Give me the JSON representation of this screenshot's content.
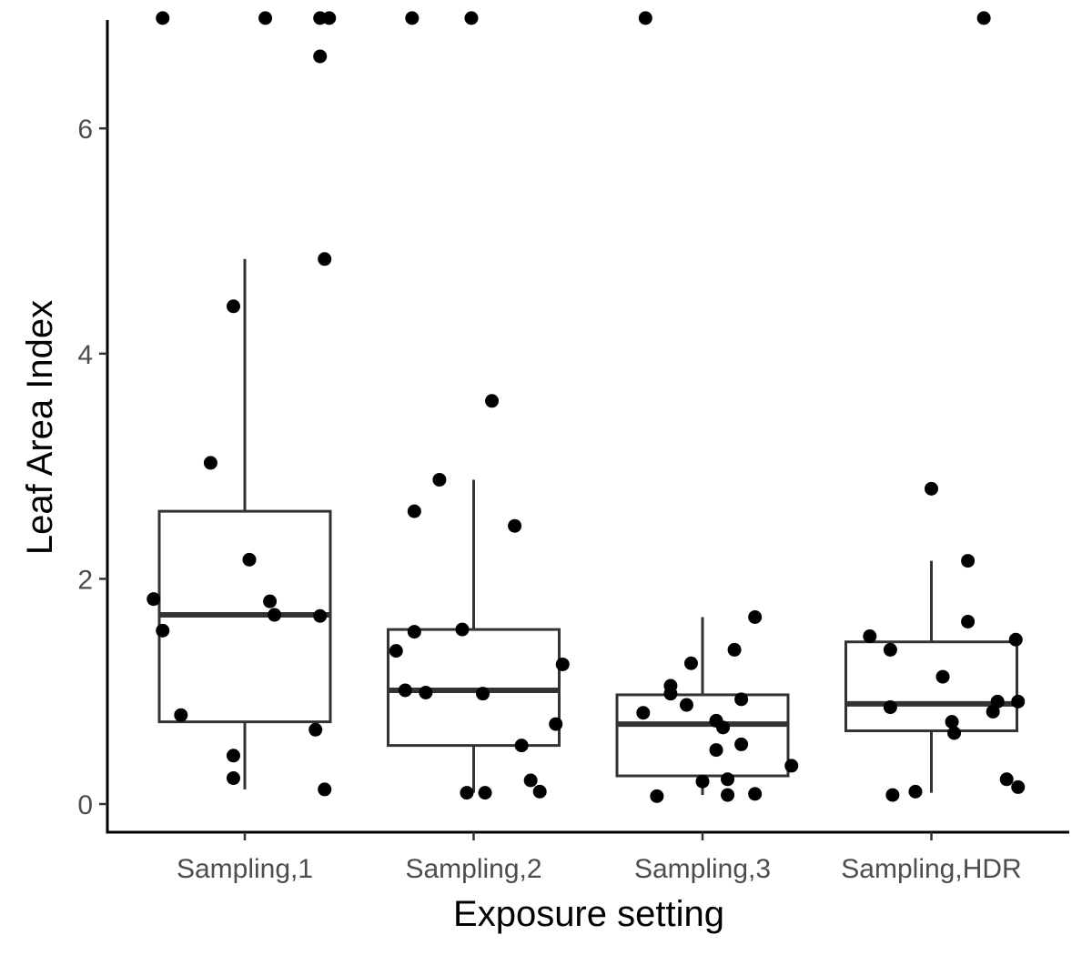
{
  "chart_data": {
    "type": "boxplot",
    "title": "",
    "xlabel": "Exposure setting",
    "ylabel": "Leaf Area Index",
    "categories": [
      "Sampling,1",
      "Sampling,2",
      "Sampling,3",
      "Sampling,HDR"
    ],
    "ylim": [
      -0.25,
      7
    ],
    "yticks": [
      0,
      2,
      4,
      6
    ],
    "grid": false,
    "legend": "none",
    "colors": {
      "box": "#333333",
      "point": "#000000",
      "axis": "#000000"
    },
    "boxes": [
      {
        "category": "Sampling,1",
        "whisker_low": 0.13,
        "q1": 0.73,
        "median": 1.68,
        "q3": 2.6,
        "whisker_high": 4.84
      },
      {
        "category": "Sampling,2",
        "whisker_low": 0.1,
        "q1": 0.52,
        "median": 1.01,
        "q3": 1.55,
        "whisker_high": 2.88
      },
      {
        "category": "Sampling,3",
        "whisker_low": 0.08,
        "q1": 0.25,
        "median": 0.71,
        "q3": 0.97,
        "whisker_high": 1.66
      },
      {
        "category": "Sampling,HDR",
        "whisker_low": 0.1,
        "q1": 0.65,
        "median": 0.89,
        "q3": 1.44,
        "whisker_high": 2.16
      }
    ],
    "points": [
      {
        "category": "Sampling,1",
        "jitter": -0.4,
        "y": 1.82
      },
      {
        "category": "Sampling,1",
        "jitter": -0.36,
        "y": 1.54
      },
      {
        "category": "Sampling,1",
        "jitter": -0.28,
        "y": 0.79
      },
      {
        "category": "Sampling,1",
        "jitter": -0.15,
        "y": 3.03
      },
      {
        "category": "Sampling,1",
        "jitter": -0.05,
        "y": 4.42
      },
      {
        "category": "Sampling,1",
        "jitter": -0.05,
        "y": 0.43
      },
      {
        "category": "Sampling,1",
        "jitter": -0.05,
        "y": 0.23
      },
      {
        "category": "Sampling,1",
        "jitter": 0.02,
        "y": 2.17
      },
      {
        "category": "Sampling,1",
        "jitter": 0.11,
        "y": 1.8
      },
      {
        "category": "Sampling,1",
        "jitter": 0.13,
        "y": 1.68
      },
      {
        "category": "Sampling,1",
        "jitter": 0.31,
        "y": 0.66
      },
      {
        "category": "Sampling,1",
        "jitter": 0.33,
        "y": 6.64
      },
      {
        "category": "Sampling,1",
        "jitter": 0.33,
        "y": 1.67
      },
      {
        "category": "Sampling,1",
        "jitter": 0.35,
        "y": 0.13
      },
      {
        "category": "Sampling,1",
        "jitter": 0.35,
        "y": 4.84
      },
      {
        "category": "Sampling,1",
        "jitter": -0.36,
        "y": 6.98
      },
      {
        "category": "Sampling,1",
        "jitter": 0.09,
        "y": 6.98
      },
      {
        "category": "Sampling,1",
        "jitter": 0.33,
        "y": 6.98
      },
      {
        "category": "Sampling,1",
        "jitter": 0.37,
        "y": 6.98
      },
      {
        "category": "Sampling,2",
        "jitter": -0.34,
        "y": 1.36
      },
      {
        "category": "Sampling,2",
        "jitter": -0.3,
        "y": 1.01
      },
      {
        "category": "Sampling,2",
        "jitter": -0.26,
        "y": 1.53
      },
      {
        "category": "Sampling,2",
        "jitter": -0.26,
        "y": 2.6
      },
      {
        "category": "Sampling,2",
        "jitter": -0.21,
        "y": 0.99
      },
      {
        "category": "Sampling,2",
        "jitter": -0.15,
        "y": 2.88
      },
      {
        "category": "Sampling,2",
        "jitter": -0.05,
        "y": 1.55
      },
      {
        "category": "Sampling,2",
        "jitter": -0.03,
        "y": 0.1
      },
      {
        "category": "Sampling,2",
        "jitter": 0.04,
        "y": 0.98
      },
      {
        "category": "Sampling,2",
        "jitter": 0.05,
        "y": 0.1
      },
      {
        "category": "Sampling,2",
        "jitter": 0.08,
        "y": 3.58
      },
      {
        "category": "Sampling,2",
        "jitter": 0.18,
        "y": 2.47
      },
      {
        "category": "Sampling,2",
        "jitter": 0.21,
        "y": 0.52
      },
      {
        "category": "Sampling,2",
        "jitter": 0.25,
        "y": 0.21
      },
      {
        "category": "Sampling,2",
        "jitter": 0.29,
        "y": 0.11
      },
      {
        "category": "Sampling,2",
        "jitter": 0.36,
        "y": 0.71
      },
      {
        "category": "Sampling,2",
        "jitter": 0.39,
        "y": 1.24
      },
      {
        "category": "Sampling,2",
        "jitter": -0.27,
        "y": 6.98
      },
      {
        "category": "Sampling,2",
        "jitter": -0.01,
        "y": 6.98
      },
      {
        "category": "Sampling,3",
        "jitter": -0.26,
        "y": 0.81
      },
      {
        "category": "Sampling,3",
        "jitter": -0.2,
        "y": 0.07
      },
      {
        "category": "Sampling,3",
        "jitter": -0.14,
        "y": 1.05
      },
      {
        "category": "Sampling,3",
        "jitter": -0.14,
        "y": 0.98
      },
      {
        "category": "Sampling,3",
        "jitter": -0.07,
        "y": 0.88
      },
      {
        "category": "Sampling,3",
        "jitter": -0.05,
        "y": 1.25
      },
      {
        "category": "Sampling,3",
        "jitter": 0.0,
        "y": 0.2
      },
      {
        "category": "Sampling,3",
        "jitter": 0.06,
        "y": 0.74
      },
      {
        "category": "Sampling,3",
        "jitter": 0.06,
        "y": 0.48
      },
      {
        "category": "Sampling,3",
        "jitter": 0.09,
        "y": 0.68
      },
      {
        "category": "Sampling,3",
        "jitter": 0.11,
        "y": 0.22
      },
      {
        "category": "Sampling,3",
        "jitter": 0.11,
        "y": 0.08
      },
      {
        "category": "Sampling,3",
        "jitter": 0.14,
        "y": 1.37
      },
      {
        "category": "Sampling,3",
        "jitter": 0.17,
        "y": 0.93
      },
      {
        "category": "Sampling,3",
        "jitter": 0.17,
        "y": 0.53
      },
      {
        "category": "Sampling,3",
        "jitter": 0.23,
        "y": 1.66
      },
      {
        "category": "Sampling,3",
        "jitter": 0.23,
        "y": 0.09
      },
      {
        "category": "Sampling,3",
        "jitter": 0.39,
        "y": 0.34
      },
      {
        "category": "Sampling,3",
        "jitter": -0.25,
        "y": 6.98
      },
      {
        "category": "Sampling,HDR",
        "jitter": -0.27,
        "y": 1.49
      },
      {
        "category": "Sampling,HDR",
        "jitter": -0.18,
        "y": 1.37
      },
      {
        "category": "Sampling,HDR",
        "jitter": -0.18,
        "y": 0.86
      },
      {
        "category": "Sampling,HDR",
        "jitter": -0.17,
        "y": 0.08
      },
      {
        "category": "Sampling,HDR",
        "jitter": -0.07,
        "y": 0.11
      },
      {
        "category": "Sampling,HDR",
        "jitter": 0.0,
        "y": 2.8
      },
      {
        "category": "Sampling,HDR",
        "jitter": 0.05,
        "y": 1.13
      },
      {
        "category": "Sampling,HDR",
        "jitter": 0.09,
        "y": 0.73
      },
      {
        "category": "Sampling,HDR",
        "jitter": 0.1,
        "y": 0.63
      },
      {
        "category": "Sampling,HDR",
        "jitter": 0.16,
        "y": 2.16
      },
      {
        "category": "Sampling,HDR",
        "jitter": 0.16,
        "y": 1.62
      },
      {
        "category": "Sampling,HDR",
        "jitter": 0.27,
        "y": 0.82
      },
      {
        "category": "Sampling,HDR",
        "jitter": 0.29,
        "y": 0.91
      },
      {
        "category": "Sampling,HDR",
        "jitter": 0.33,
        "y": 0.22
      },
      {
        "category": "Sampling,HDR",
        "jitter": 0.37,
        "y": 1.46
      },
      {
        "category": "Sampling,HDR",
        "jitter": 0.38,
        "y": 0.15
      },
      {
        "category": "Sampling,HDR",
        "jitter": 0.38,
        "y": 0.91
      },
      {
        "category": "Sampling,HDR",
        "jitter": 0.23,
        "y": 6.98
      }
    ]
  }
}
